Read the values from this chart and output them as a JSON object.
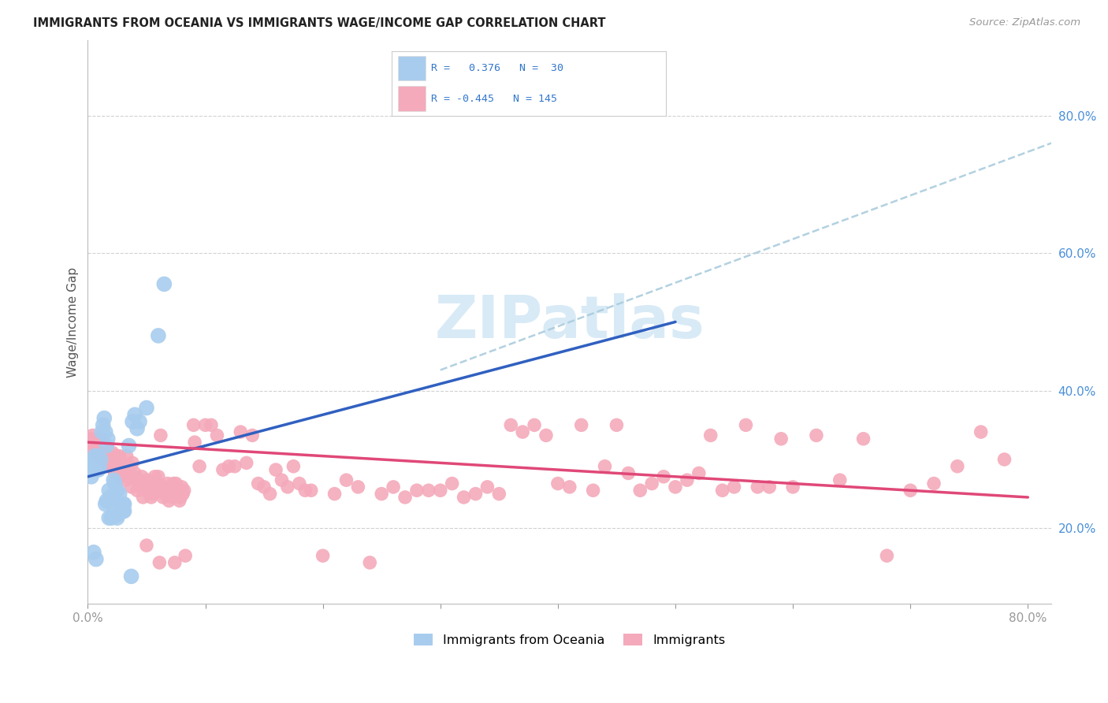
{
  "title": "IMMIGRANTS FROM OCEANIA VS IMMIGRANTS WAGE/INCOME GAP CORRELATION CHART",
  "source": "Source: ZipAtlas.com",
  "ylabel": "Wage/Income Gap",
  "xlim": [
    0.0,
    0.82
  ],
  "ylim": [
    0.09,
    0.91
  ],
  "y_ticks": [
    0.2,
    0.4,
    0.6,
    0.8
  ],
  "y_tick_labels": [
    "20.0%",
    "40.0%",
    "60.0%",
    "80.0%"
  ],
  "legend_footer1": "Immigrants from Oceania",
  "legend_footer2": "Immigrants",
  "blue_color": "#A8CCEE",
  "pink_color": "#F4AABB",
  "blue_line_color": "#3060C0",
  "pink_line_color": "#E04878",
  "dashed_color": "#AACCDD",
  "grid_color": "#CCCCCC",
  "watermark_color": "#D8EAF6",
  "background": "#FFFFFF",
  "blue_dots": [
    [
      0.002,
      0.285
    ],
    [
      0.003,
      0.275
    ],
    [
      0.004,
      0.29
    ],
    [
      0.005,
      0.3
    ],
    [
      0.006,
      0.305
    ],
    [
      0.007,
      0.295
    ],
    [
      0.008,
      0.305
    ],
    [
      0.009,
      0.285
    ],
    [
      0.01,
      0.29
    ],
    [
      0.011,
      0.3
    ],
    [
      0.012,
      0.34
    ],
    [
      0.013,
      0.35
    ],
    [
      0.014,
      0.36
    ],
    [
      0.015,
      0.34
    ],
    [
      0.016,
      0.32
    ],
    [
      0.017,
      0.33
    ],
    [
      0.018,
      0.255
    ],
    [
      0.019,
      0.245
    ],
    [
      0.02,
      0.24
    ],
    [
      0.021,
      0.235
    ],
    [
      0.022,
      0.27
    ],
    [
      0.023,
      0.265
    ],
    [
      0.025,
      0.255
    ],
    [
      0.027,
      0.25
    ],
    [
      0.03,
      0.235
    ],
    [
      0.031,
      0.235
    ],
    [
      0.035,
      0.32
    ],
    [
      0.038,
      0.355
    ],
    [
      0.04,
      0.365
    ],
    [
      0.042,
      0.345
    ],
    [
      0.044,
      0.355
    ],
    [
      0.05,
      0.375
    ],
    [
      0.06,
      0.48
    ],
    [
      0.065,
      0.555
    ],
    [
      0.005,
      0.165
    ],
    [
      0.007,
      0.155
    ],
    [
      0.018,
      0.215
    ],
    [
      0.02,
      0.215
    ],
    [
      0.025,
      0.215
    ],
    [
      0.026,
      0.22
    ],
    [
      0.03,
      0.225
    ],
    [
      0.031,
      0.225
    ],
    [
      0.015,
      0.235
    ],
    [
      0.016,
      0.24
    ],
    [
      0.037,
      0.13
    ]
  ],
  "pink_dots": [
    [
      0.002,
      0.33
    ],
    [
      0.003,
      0.325
    ],
    [
      0.004,
      0.335
    ],
    [
      0.005,
      0.315
    ],
    [
      0.006,
      0.32
    ],
    [
      0.007,
      0.31
    ],
    [
      0.008,
      0.325
    ],
    [
      0.009,
      0.305
    ],
    [
      0.01,
      0.315
    ],
    [
      0.011,
      0.33
    ],
    [
      0.012,
      0.32
    ],
    [
      0.013,
      0.31
    ],
    [
      0.014,
      0.305
    ],
    [
      0.015,
      0.3
    ],
    [
      0.016,
      0.295
    ],
    [
      0.017,
      0.315
    ],
    [
      0.018,
      0.29
    ],
    [
      0.019,
      0.305
    ],
    [
      0.02,
      0.295
    ],
    [
      0.021,
      0.31
    ],
    [
      0.022,
      0.29
    ],
    [
      0.023,
      0.28
    ],
    [
      0.024,
      0.305
    ],
    [
      0.025,
      0.285
    ],
    [
      0.026,
      0.295
    ],
    [
      0.027,
      0.305
    ],
    [
      0.028,
      0.275
    ],
    [
      0.029,
      0.285
    ],
    [
      0.03,
      0.295
    ],
    [
      0.031,
      0.28
    ],
    [
      0.032,
      0.27
    ],
    [
      0.033,
      0.305
    ],
    [
      0.034,
      0.285
    ],
    [
      0.035,
      0.275
    ],
    [
      0.036,
      0.29
    ],
    [
      0.037,
      0.26
    ],
    [
      0.038,
      0.295
    ],
    [
      0.039,
      0.275
    ],
    [
      0.04,
      0.28
    ],
    [
      0.041,
      0.27
    ],
    [
      0.042,
      0.255
    ],
    [
      0.043,
      0.265
    ],
    [
      0.044,
      0.27
    ],
    [
      0.045,
      0.26
    ],
    [
      0.046,
      0.275
    ],
    [
      0.047,
      0.245
    ],
    [
      0.048,
      0.265
    ],
    [
      0.049,
      0.255
    ],
    [
      0.05,
      0.175
    ],
    [
      0.051,
      0.27
    ],
    [
      0.052,
      0.255
    ],
    [
      0.053,
      0.265
    ],
    [
      0.054,
      0.245
    ],
    [
      0.055,
      0.26
    ],
    [
      0.056,
      0.25
    ],
    [
      0.057,
      0.275
    ],
    [
      0.058,
      0.26
    ],
    [
      0.059,
      0.265
    ],
    [
      0.06,
      0.275
    ],
    [
      0.061,
      0.15
    ],
    [
      0.062,
      0.335
    ],
    [
      0.063,
      0.255
    ],
    [
      0.064,
      0.245
    ],
    [
      0.065,
      0.26
    ],
    [
      0.066,
      0.25
    ],
    [
      0.067,
      0.255
    ],
    [
      0.068,
      0.265
    ],
    [
      0.069,
      0.24
    ],
    [
      0.07,
      0.255
    ],
    [
      0.071,
      0.26
    ],
    [
      0.072,
      0.245
    ],
    [
      0.073,
      0.265
    ],
    [
      0.074,
      0.15
    ],
    [
      0.075,
      0.265
    ],
    [
      0.076,
      0.25
    ],
    [
      0.077,
      0.255
    ],
    [
      0.078,
      0.24
    ],
    [
      0.079,
      0.245
    ],
    [
      0.08,
      0.26
    ],
    [
      0.081,
      0.25
    ],
    [
      0.082,
      0.255
    ],
    [
      0.083,
      0.16
    ],
    [
      0.09,
      0.35
    ],
    [
      0.091,
      0.325
    ],
    [
      0.095,
      0.29
    ],
    [
      0.1,
      0.35
    ],
    [
      0.105,
      0.35
    ],
    [
      0.11,
      0.335
    ],
    [
      0.115,
      0.285
    ],
    [
      0.12,
      0.29
    ],
    [
      0.125,
      0.29
    ],
    [
      0.13,
      0.34
    ],
    [
      0.135,
      0.295
    ],
    [
      0.14,
      0.335
    ],
    [
      0.145,
      0.265
    ],
    [
      0.15,
      0.26
    ],
    [
      0.155,
      0.25
    ],
    [
      0.16,
      0.285
    ],
    [
      0.165,
      0.27
    ],
    [
      0.17,
      0.26
    ],
    [
      0.175,
      0.29
    ],
    [
      0.18,
      0.265
    ],
    [
      0.185,
      0.255
    ],
    [
      0.19,
      0.255
    ],
    [
      0.2,
      0.16
    ],
    [
      0.21,
      0.25
    ],
    [
      0.22,
      0.27
    ],
    [
      0.23,
      0.26
    ],
    [
      0.24,
      0.15
    ],
    [
      0.25,
      0.25
    ],
    [
      0.26,
      0.26
    ],
    [
      0.27,
      0.245
    ],
    [
      0.28,
      0.255
    ],
    [
      0.29,
      0.255
    ],
    [
      0.3,
      0.255
    ],
    [
      0.31,
      0.265
    ],
    [
      0.32,
      0.245
    ],
    [
      0.33,
      0.25
    ],
    [
      0.34,
      0.26
    ],
    [
      0.35,
      0.25
    ],
    [
      0.36,
      0.35
    ],
    [
      0.37,
      0.34
    ],
    [
      0.38,
      0.35
    ],
    [
      0.39,
      0.335
    ],
    [
      0.4,
      0.265
    ],
    [
      0.41,
      0.26
    ],
    [
      0.42,
      0.35
    ],
    [
      0.43,
      0.255
    ],
    [
      0.44,
      0.29
    ],
    [
      0.45,
      0.35
    ],
    [
      0.46,
      0.28
    ],
    [
      0.47,
      0.255
    ],
    [
      0.48,
      0.265
    ],
    [
      0.49,
      0.275
    ],
    [
      0.5,
      0.26
    ],
    [
      0.51,
      0.27
    ],
    [
      0.52,
      0.28
    ],
    [
      0.53,
      0.335
    ],
    [
      0.54,
      0.255
    ],
    [
      0.55,
      0.26
    ],
    [
      0.56,
      0.35
    ],
    [
      0.57,
      0.26
    ],
    [
      0.58,
      0.26
    ],
    [
      0.59,
      0.33
    ],
    [
      0.6,
      0.26
    ],
    [
      0.62,
      0.335
    ],
    [
      0.64,
      0.27
    ],
    [
      0.66,
      0.33
    ],
    [
      0.68,
      0.16
    ],
    [
      0.7,
      0.255
    ],
    [
      0.72,
      0.265
    ],
    [
      0.74,
      0.29
    ],
    [
      0.76,
      0.34
    ],
    [
      0.78,
      0.3
    ]
  ],
  "blue_line": [
    [
      0.0,
      0.275
    ],
    [
      0.5,
      0.5
    ]
  ],
  "pink_line": [
    [
      0.0,
      0.325
    ],
    [
      0.8,
      0.245
    ]
  ],
  "dashed_line": [
    [
      0.3,
      0.43
    ],
    [
      0.82,
      0.76
    ]
  ]
}
